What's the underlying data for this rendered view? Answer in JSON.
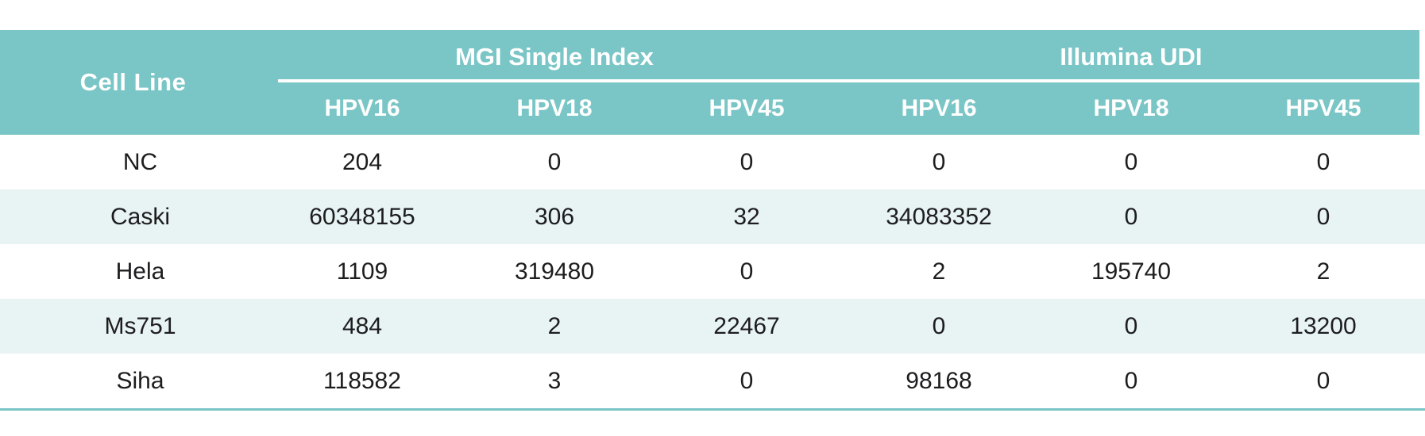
{
  "table": {
    "cell_line_header": "Cell Line",
    "groups": [
      {
        "label": "MGI Single Index"
      },
      {
        "label": "Illumina UDI"
      }
    ],
    "sub_headers": [
      "HPV16",
      "HPV18",
      "HPV45",
      "HPV16",
      "HPV18",
      "HPV45"
    ],
    "rows": [
      {
        "cell_line": "NC",
        "values": [
          "204",
          "0",
          "0",
          "0",
          "0",
          "0"
        ]
      },
      {
        "cell_line": "Caski",
        "values": [
          "60348155",
          "306",
          "32",
          "34083352",
          "0",
          "0"
        ]
      },
      {
        "cell_line": "Hela",
        "values": [
          "1109",
          "319480",
          "0",
          "2",
          "195740",
          "2"
        ]
      },
      {
        "cell_line": "Ms751",
        "values": [
          "484",
          "2",
          "22467",
          "0",
          "0",
          "13200"
        ]
      },
      {
        "cell_line": "Siha",
        "values": [
          "118582",
          "3",
          "0",
          "98168",
          "0",
          "0"
        ]
      }
    ],
    "colors": {
      "header_background": "#7ac5c6",
      "alt_row_background": "#e8f3f3",
      "header_text": "#ffffff",
      "body_text": "#1d1d1f",
      "bottom_rule": "#7ac5c6"
    }
  },
  "chart_data": {
    "type": "table",
    "title": "",
    "row_header": "Cell Line",
    "column_groups": [
      "MGI Single Index",
      "Illumina UDI"
    ],
    "columns": [
      "MGI HPV16",
      "MGI HPV18",
      "MGI HPV45",
      "Illumina HPV16",
      "Illumina HPV18",
      "Illumina HPV45"
    ],
    "rows": [
      {
        "name": "NC",
        "values": [
          204,
          0,
          0,
          0,
          0,
          0
        ]
      },
      {
        "name": "Caski",
        "values": [
          60348155,
          306,
          32,
          34083352,
          0,
          0
        ]
      },
      {
        "name": "Hela",
        "values": [
          1109,
          319480,
          0,
          2,
          195740,
          2
        ]
      },
      {
        "name": "Ms751",
        "values": [
          484,
          2,
          22467,
          0,
          0,
          13200
        ]
      },
      {
        "name": "Siha",
        "values": [
          118582,
          3,
          0,
          98168,
          0,
          0
        ]
      }
    ]
  }
}
